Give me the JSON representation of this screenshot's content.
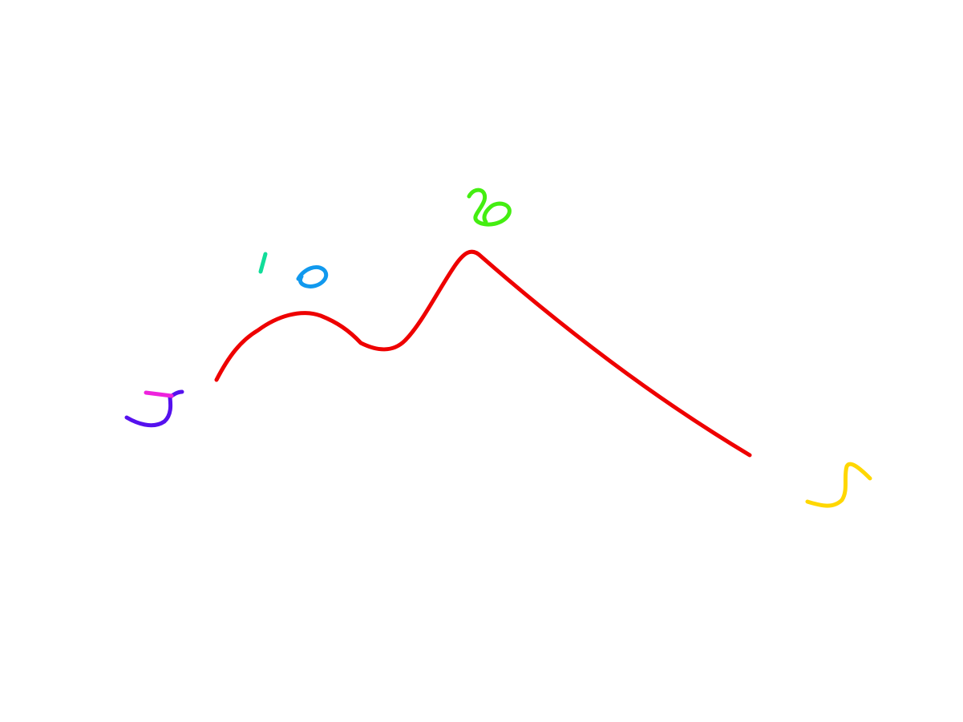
{
  "sketch": {
    "colors": {
      "curve": "#ee0000",
      "digit_j": "#5511ee",
      "digit_j_bar": "#ee22dd",
      "digit_one": "#11dd99",
      "digit_zero": "#1199ee",
      "digit_top": "#44ee11",
      "digit_five": "#ffd700",
      "background": "#ffffff"
    }
  }
}
